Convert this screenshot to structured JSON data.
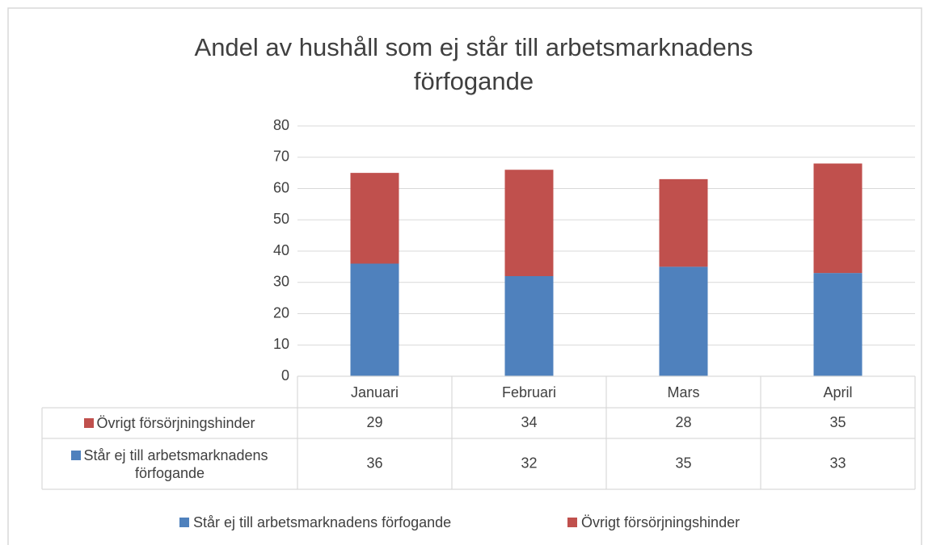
{
  "chart_data": {
    "type": "stacked_bar",
    "title": "Andel av hushåll som ej står till arbetsmarknadens förfogande",
    "categories": [
      "Januari",
      "Februari",
      "Mars",
      "April"
    ],
    "series": [
      {
        "name": "Står ej till arbetsmarknadens förfogande",
        "color": "#4f81bd",
        "values": [
          36,
          32,
          35,
          33
        ]
      },
      {
        "name": "Övrigt försörjningshinder",
        "color": "#c0504d",
        "values": [
          29,
          34,
          28,
          35
        ]
      }
    ],
    "ylim": [
      0,
      80
    ],
    "yticks": [
      0,
      10,
      20,
      30,
      40,
      50,
      60,
      70,
      80
    ],
    "grid": true,
    "legend": "bottom",
    "data_table": true
  }
}
